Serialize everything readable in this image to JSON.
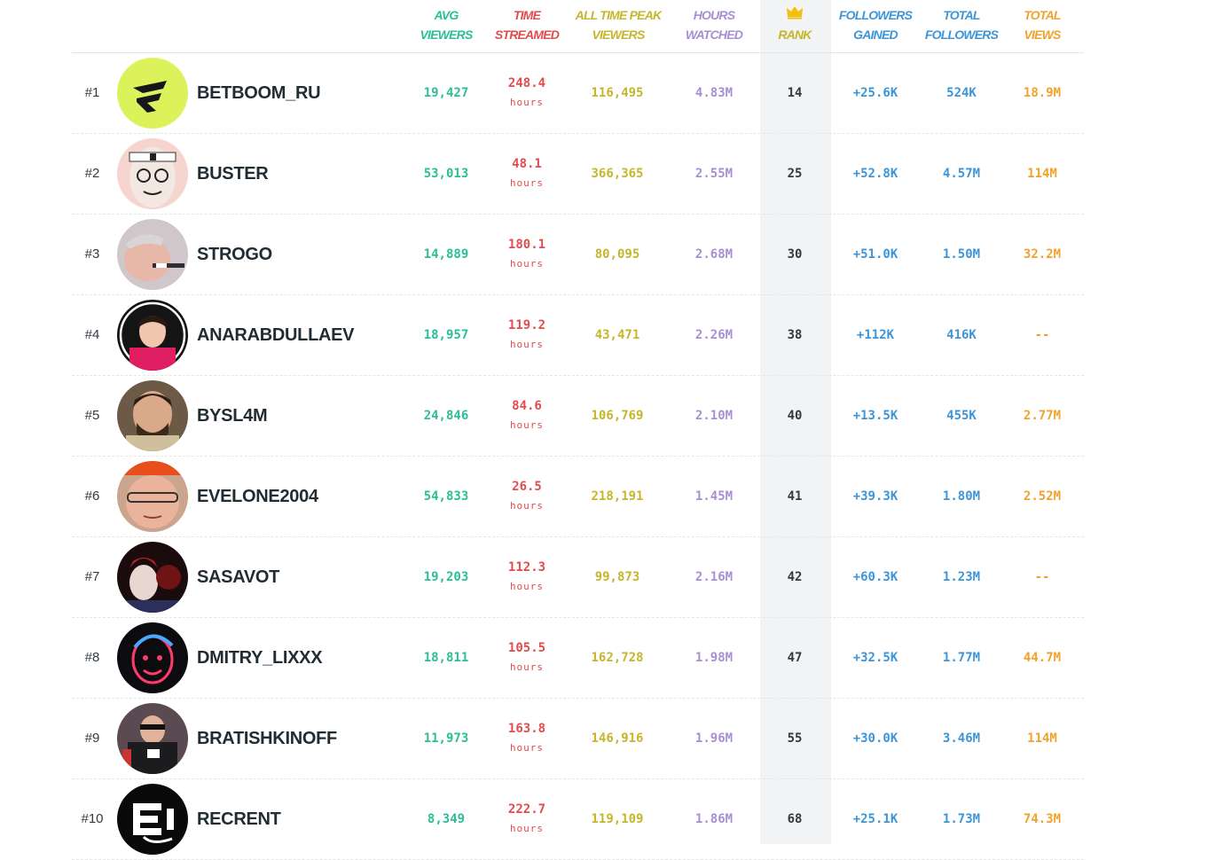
{
  "colors": {
    "avg_viewers": "#2bbf96",
    "time_streamed": "#e14d4d",
    "peak_viewers": "#c5b62b",
    "hours_watched": "#a78fd3",
    "rank": "#333a40",
    "crown": "#f2c10f",
    "followers_gained": "#3d95d8",
    "total_followers": "#3d95d8",
    "total_views": "#f0a22b"
  },
  "headers": {
    "avg_viewers": [
      "AVG",
      "VIEWERS"
    ],
    "time_streamed": [
      "TIME",
      "STREAMED"
    ],
    "peak_viewers": [
      "ALL TIME PEAK",
      "VIEWERS"
    ],
    "hours_watched": [
      "HOURS",
      "WATCHED"
    ],
    "rank": [
      "RANK"
    ],
    "rank_icon": "crown-icon",
    "followers_gained": [
      "FOLLOWERS",
      "GAINED"
    ],
    "total_followers": [
      "TOTAL",
      "FOLLOWERS"
    ],
    "total_views": [
      "TOTAL",
      "VIEWS"
    ]
  },
  "hours_unit": "hours",
  "rows": [
    {
      "pos": "#1",
      "name": "BETBOOM_RU",
      "avatar": "betboom-logo",
      "avg": "19,427",
      "time": "248.4",
      "peak": "116,495",
      "watched": "4.83M",
      "rank": "14",
      "gained": "+25.6K",
      "followers": "524K",
      "views": "18.9M"
    },
    {
      "pos": "#2",
      "name": "BUSTER",
      "avatar": "buster-cartoon",
      "avg": "53,013",
      "time": "48.1",
      "peak": "366,365",
      "watched": "2.55M",
      "rank": "25",
      "gained": "+52.8K",
      "followers": "4.57M",
      "views": "114M"
    },
    {
      "pos": "#3",
      "name": "STROGO",
      "avatar": "strogo-photo",
      "avg": "14,889",
      "time": "180.1",
      "peak": "80,095",
      "watched": "2.68M",
      "rank": "30",
      "gained": "+51.0K",
      "followers": "1.50M",
      "views": "32.2M"
    },
    {
      "pos": "#4",
      "name": "ANARABDULLAEV",
      "avatar": "anarabdullaev-photo",
      "avg": "18,957",
      "time": "119.2",
      "peak": "43,471",
      "watched": "2.26M",
      "rank": "38",
      "gained": "+112K",
      "followers": "416K",
      "views": "--"
    },
    {
      "pos": "#5",
      "name": "BYSL4M",
      "avatar": "bysl4m-art",
      "avg": "24,846",
      "time": "84.6",
      "peak": "106,769",
      "watched": "2.10M",
      "rank": "40",
      "gained": "+13.5K",
      "followers": "455K",
      "views": "2.77M"
    },
    {
      "pos": "#6",
      "name": "EVELONE2004",
      "avatar": "evelone-photo",
      "avg": "54,833",
      "time": "26.5",
      "peak": "218,191",
      "watched": "1.45M",
      "rank": "41",
      "gained": "+39.3K",
      "followers": "1.80M",
      "views": "2.52M"
    },
    {
      "pos": "#7",
      "name": "SASAVOT",
      "avatar": "sasavot-art",
      "avg": "19,203",
      "time": "112.3",
      "peak": "99,873",
      "watched": "2.16M",
      "rank": "42",
      "gained": "+60.3K",
      "followers": "1.23M",
      "views": "--"
    },
    {
      "pos": "#8",
      "name": "DMITRY_LIXXX",
      "avatar": "lixxx-neon",
      "avg": "18,811",
      "time": "105.5",
      "peak": "162,728",
      "watched": "1.98M",
      "rank": "47",
      "gained": "+32.5K",
      "followers": "1.77M",
      "views": "44.7M"
    },
    {
      "pos": "#9",
      "name": "BRATISHKINOFF",
      "avatar": "bratishkinoff-photo",
      "avg": "11,973",
      "time": "163.8",
      "peak": "146,916",
      "watched": "1.96M",
      "rank": "55",
      "gained": "+30.0K",
      "followers": "3.46M",
      "views": "114M"
    },
    {
      "pos": "#10",
      "name": "RECRENT",
      "avatar": "recrent-logo",
      "avg": "8,349",
      "time": "222.7",
      "peak": "119,109",
      "watched": "1.86M",
      "rank": "68",
      "gained": "+25.1K",
      "followers": "1.73M",
      "views": "74.3M"
    }
  ]
}
